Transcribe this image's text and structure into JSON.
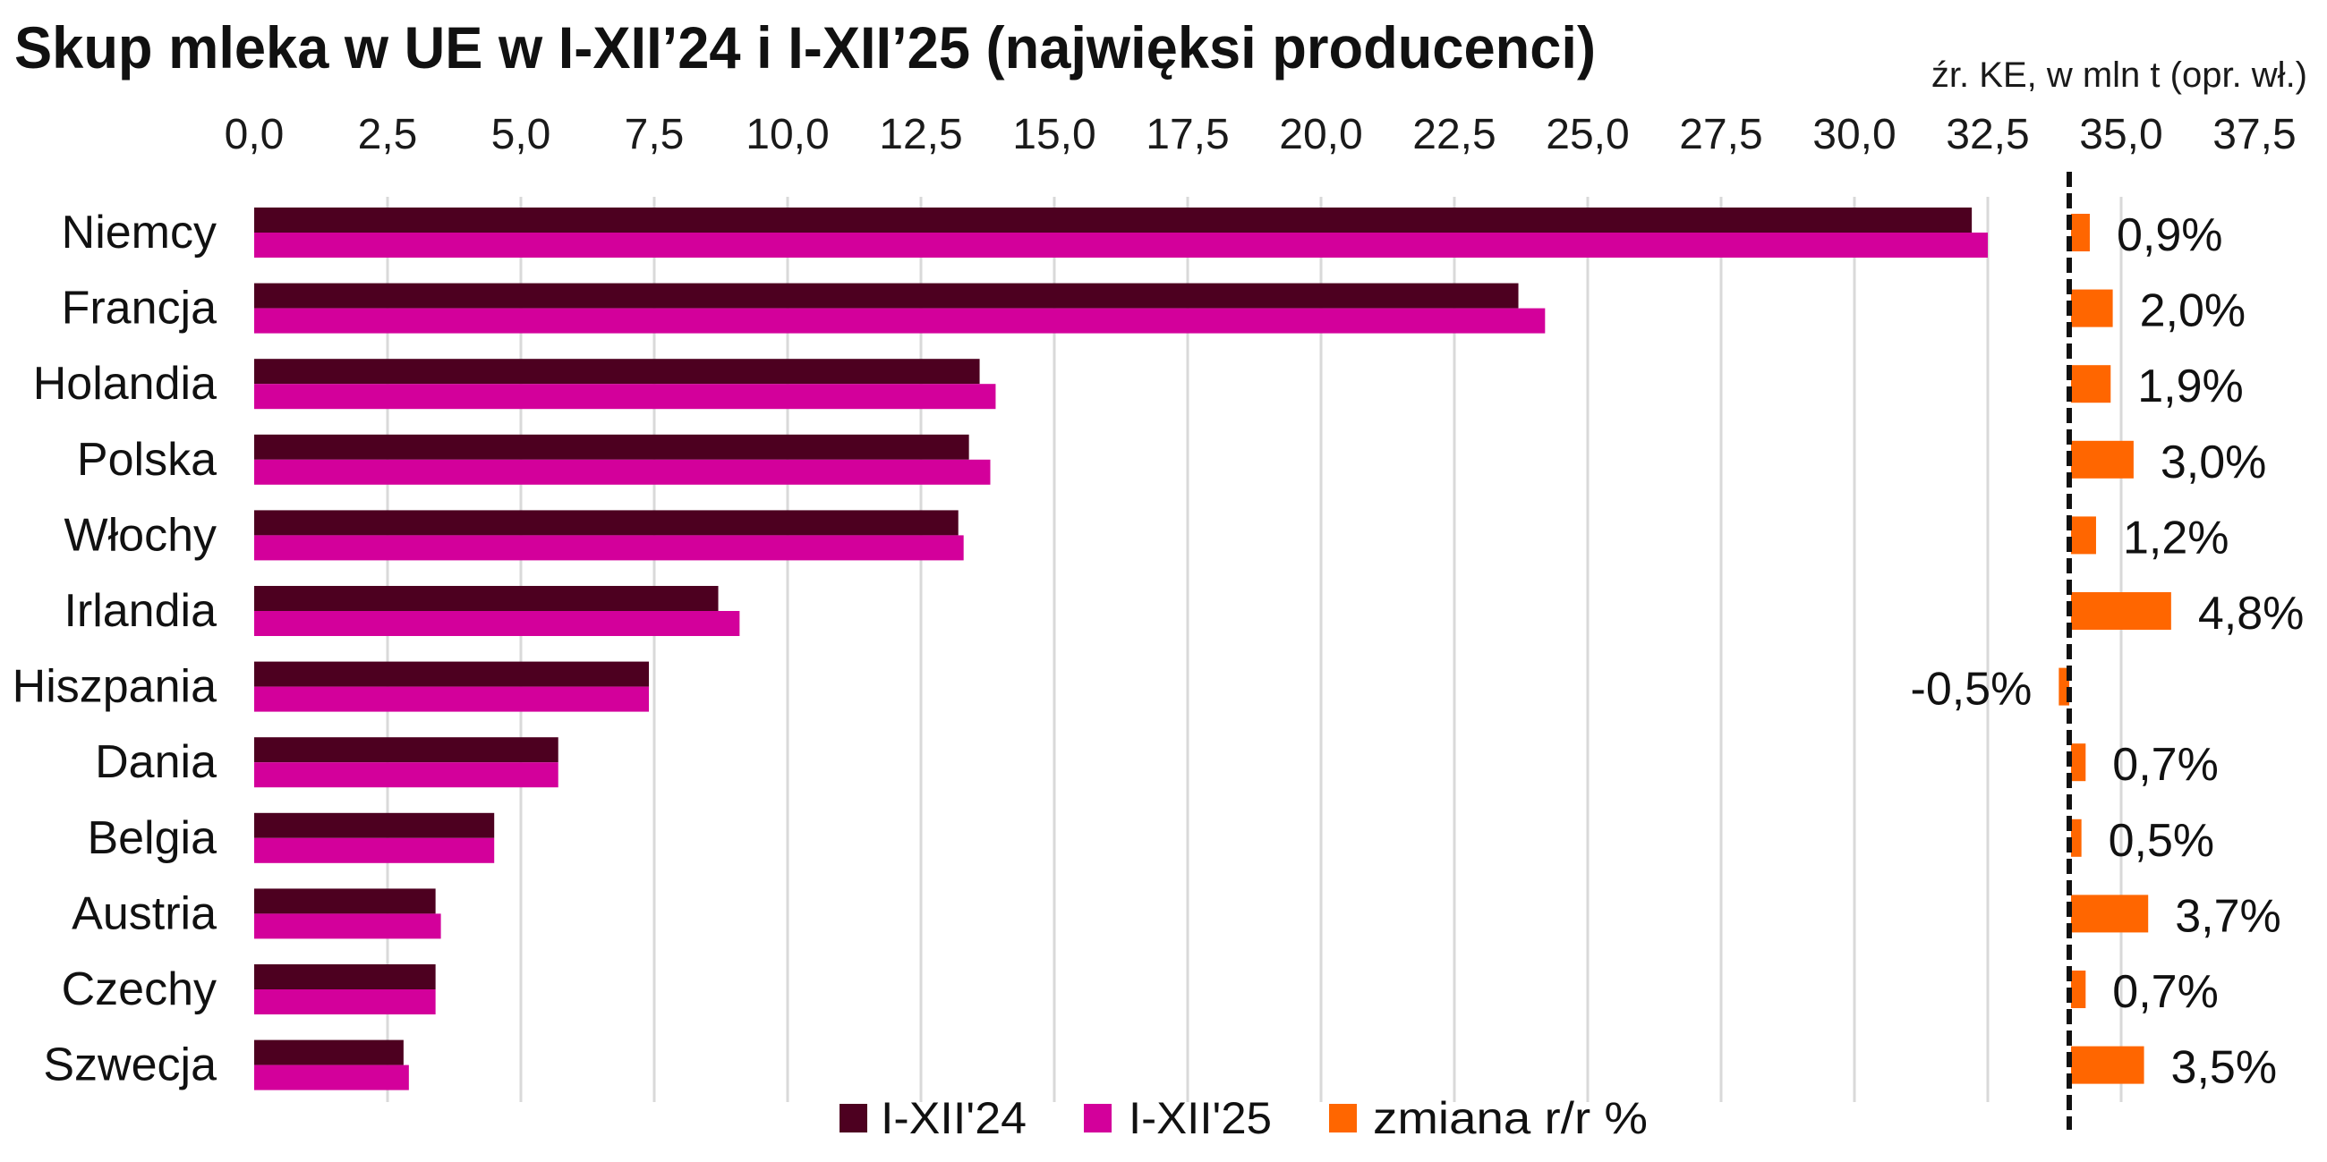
{
  "chart_data": {
    "type": "bar",
    "orientation": "horizontal",
    "title": "Skup mleka w UE w I-XII’24 i I-XII’25 (najwięksi producenci)",
    "source": "źr. KE, w mln t (opr. wł.)",
    "xlabel": "",
    "ylabel": "",
    "xlim": [
      0,
      37.5
    ],
    "x_ticks": [
      "0,0",
      "2,5",
      "5,0",
      "7,5",
      "10,0",
      "12,5",
      "15,0",
      "17,5",
      "20,0",
      "22,5",
      "25,0",
      "27,5",
      "30,0",
      "32,5",
      "35,0",
      "37,5"
    ],
    "x_tick_values": [
      0,
      2.5,
      5,
      7.5,
      10,
      12.5,
      15,
      17.5,
      20,
      22.5,
      25,
      27.5,
      30,
      32.5,
      35,
      37.5
    ],
    "grid": true,
    "legend_position": "bottom",
    "categories": [
      "Niemcy",
      "Francja",
      "Holandia",
      "Polska",
      "Włochy",
      "Irlandia",
      "Hiszpania",
      "Dania",
      "Belgia",
      "Austria",
      "Czechy",
      "Szwecja"
    ],
    "series": [
      {
        "name": "I-XII'24",
        "color": "#4D0020",
        "values": [
          32.2,
          23.7,
          13.6,
          13.4,
          13.2,
          8.7,
          7.4,
          5.7,
          4.5,
          3.4,
          3.4,
          2.8
        ]
      },
      {
        "name": "I-XII'25",
        "color": "#D3009B",
        "values": [
          32.5,
          24.2,
          13.9,
          13.8,
          13.3,
          9.1,
          7.4,
          5.7,
          4.5,
          3.5,
          3.4,
          2.9
        ]
      },
      {
        "name": "zmiana r/r %",
        "color": "#FF6600",
        "unit": "%",
        "values": [
          0.9,
          2.0,
          1.9,
          3.0,
          1.2,
          4.8,
          -0.5,
          0.7,
          0.5,
          3.7,
          0.7,
          3.5
        ],
        "labels": [
          "0,9%",
          "2,0%",
          "1,9%",
          "3,0%",
          "1,2%",
          "4,8%",
          "-0,5%",
          "0,7%",
          "0,5%",
          "3,7%",
          "0,7%",
          "3,5%"
        ]
      }
    ]
  }
}
